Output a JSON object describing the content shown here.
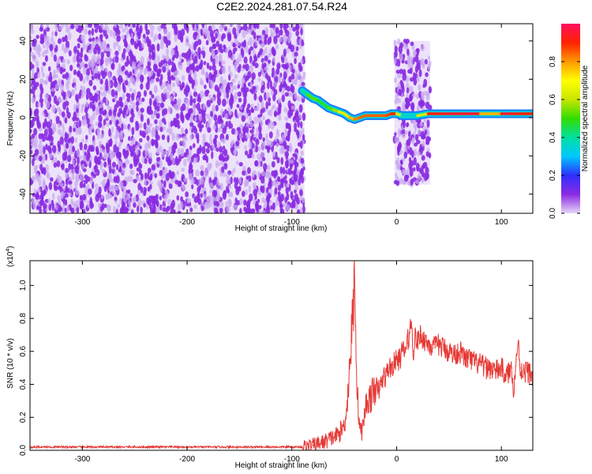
{
  "title": "C2E2.2024.281.07.54.R24",
  "colors": {
    "snr_line": "#e53935",
    "spectrogram_dots": "#8a2be2",
    "spectrogram_faint": "#c9a8f0"
  },
  "chart_data": [
    {
      "type": "heatmap",
      "xlabel": "Height of straight line (km)",
      "ylabel": "Frequency (Hz)",
      "xlim": [
        -350,
        130
      ],
      "ylim": [
        -50,
        49
      ],
      "xticks": [
        -300,
        -200,
        -100,
        0,
        100
      ],
      "yticks": [
        -40,
        -20,
        0,
        20,
        40
      ],
      "xtick_labels": [
        "-300",
        "-200",
        "-100",
        "0",
        "100"
      ],
      "ytick_labels": [
        "-40",
        "-20",
        "0",
        "20",
        "40"
      ],
      "colorbar": {
        "label": "Normalized spectral amplitude",
        "range": [
          0,
          1
        ],
        "ticks": [
          0.0,
          0.2,
          0.4,
          0.6,
          0.8
        ],
        "tick_labels": [
          "0.0",
          "0.2",
          "0.4",
          "0.6",
          "0.8"
        ],
        "colormap": [
          "#e6d6f7",
          "#8a2be2",
          "#2f2fff",
          "#00c8ff",
          "#00e0a0",
          "#33dd00",
          "#c8e600",
          "#ffff00",
          "#ff9900",
          "#ff2200",
          "#ff1060"
        ]
      },
      "noise_regions": [
        {
          "x": [
            -350,
            -88
          ],
          "freq": [
            -50,
            49
          ],
          "amplitude": 0.15
        },
        {
          "x": [
            -2,
            32
          ],
          "freq": [
            -35,
            40
          ],
          "amplitude": 0.15
        }
      ],
      "ridge": {
        "x": [
          -90,
          -85,
          -80,
          -75,
          -70,
          -65,
          -60,
          -55,
          -50,
          -45,
          -40,
          -35,
          -30,
          -25,
          -20,
          -15,
          -10,
          -5,
          0,
          5,
          10,
          20,
          30,
          40,
          50,
          60,
          70,
          80,
          90,
          100,
          110,
          120,
          130
        ],
        "freq": [
          14,
          12,
          10,
          9,
          7,
          5,
          4,
          3,
          2,
          0,
          -1,
          0,
          1,
          1,
          1,
          1,
          1,
          2,
          2,
          1,
          1,
          1,
          2,
          2,
          2,
          2,
          2,
          2,
          2,
          2,
          2,
          2,
          2
        ],
        "amplitude": [
          0.3,
          0.5,
          0.55,
          0.5,
          0.45,
          0.5,
          0.55,
          0.6,
          0.7,
          0.75,
          0.8,
          0.85,
          0.85,
          0.85,
          0.85,
          0.85,
          0.85,
          0.9,
          0.9,
          0.35,
          0.35,
          0.35,
          0.9,
          0.92,
          0.95,
          0.95,
          0.95,
          0.95,
          0.6,
          0.95,
          0.95,
          0.9,
          0.9
        ]
      }
    },
    {
      "type": "line",
      "xlabel": "Height of straight line (km)",
      "ylabel": "SNR (10 * v/v)",
      "y_scale_label": "(x10",
      "y_scale_exp": "4",
      "xlim": [
        -350,
        130
      ],
      "ylim": [
        0,
        1.15
      ],
      "xticks": [
        -300,
        -200,
        -100,
        0,
        100
      ],
      "yticks": [
        0.0,
        0.2,
        0.4,
        0.6,
        0.8,
        1.0
      ],
      "xtick_labels": [
        "-300",
        "-200",
        "-100",
        "0",
        "100"
      ],
      "ytick_labels": [
        "0.0",
        "0.2",
        "0.4",
        "0.6",
        "0.8",
        "1.0"
      ],
      "series": [
        {
          "x": [
            -350,
            -300,
            -250,
            -200,
            -150,
            -110,
            -90,
            -80,
            -70,
            -60,
            -55,
            -50,
            -47,
            -45,
            -43,
            -41,
            -40,
            -39,
            -38,
            -36,
            -34,
            -32,
            -30,
            -28,
            -25,
            -22,
            -20,
            -18,
            -15,
            -12,
            -10,
            -8,
            -5,
            -3,
            0,
            3,
            5,
            8,
            10,
            12,
            14,
            16,
            18,
            20,
            22,
            25,
            28,
            30,
            35,
            40,
            45,
            50,
            55,
            60,
            65,
            70,
            75,
            80,
            85,
            90,
            95,
            100,
            105,
            110,
            112,
            114,
            116,
            118,
            120,
            125,
            130
          ],
          "y": [
            0.02,
            0.02,
            0.02,
            0.02,
            0.02,
            0.02,
            0.02,
            0.03,
            0.05,
            0.08,
            0.1,
            0.15,
            0.3,
            0.5,
            0.7,
            0.9,
            1.15,
            0.75,
            0.4,
            0.2,
            0.1,
            0.15,
            0.25,
            0.3,
            0.32,
            0.35,
            0.4,
            0.35,
            0.4,
            0.45,
            0.45,
            0.5,
            0.5,
            0.52,
            0.55,
            0.55,
            0.6,
            0.6,
            0.65,
            0.7,
            0.78,
            0.6,
            0.7,
            0.65,
            0.7,
            0.68,
            0.66,
            0.65,
            0.62,
            0.64,
            0.62,
            0.6,
            0.58,
            0.6,
            0.56,
            0.55,
            0.53,
            0.52,
            0.5,
            0.5,
            0.48,
            0.5,
            0.45,
            0.5,
            0.35,
            0.55,
            0.65,
            0.5,
            0.48,
            0.48,
            0.45
          ]
        }
      ]
    }
  ]
}
